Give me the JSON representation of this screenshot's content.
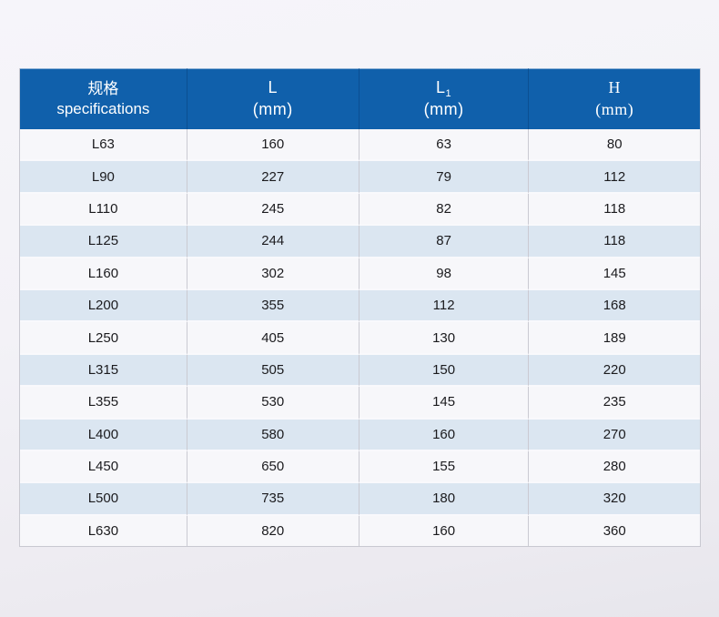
{
  "chart_data": {
    "type": "table",
    "columns": [
      {
        "line1": "规格",
        "line2": "specifications"
      },
      {
        "line1": "L",
        "line2": "(mm)"
      },
      {
        "line1": "L",
        "sub": "1",
        "line2": "(mm)"
      },
      {
        "line1": "H",
        "line2": "(mm)"
      }
    ],
    "rows": [
      [
        "L63",
        "160",
        "63",
        "80"
      ],
      [
        "L90",
        "227",
        "79",
        "112"
      ],
      [
        "L110",
        "245",
        "82",
        "118"
      ],
      [
        "L125",
        "244",
        "87",
        "118"
      ],
      [
        "L160",
        "302",
        "98",
        "145"
      ],
      [
        "L200",
        "355",
        "112",
        "168"
      ],
      [
        "L250",
        "405",
        "130",
        "189"
      ],
      [
        "L315",
        "505",
        "150",
        "220"
      ],
      [
        "L355",
        "530",
        "145",
        "235"
      ],
      [
        "L400",
        "580",
        "160",
        "270"
      ],
      [
        "L450",
        "650",
        "155",
        "280"
      ],
      [
        "L500",
        "735",
        "180",
        "320"
      ],
      [
        "L630",
        "820",
        "160",
        "360"
      ]
    ],
    "colors": {
      "header_background": "#1060ab",
      "header_divider": "#0b4f92",
      "header_text": "#ffffff",
      "row_light": "#f7f7fa",
      "row_alternate": "#dbe6f1",
      "grid_line": "#c9c9d1",
      "body_text": "#1b1b1e"
    },
    "legend_position": "none",
    "grid": "on"
  }
}
